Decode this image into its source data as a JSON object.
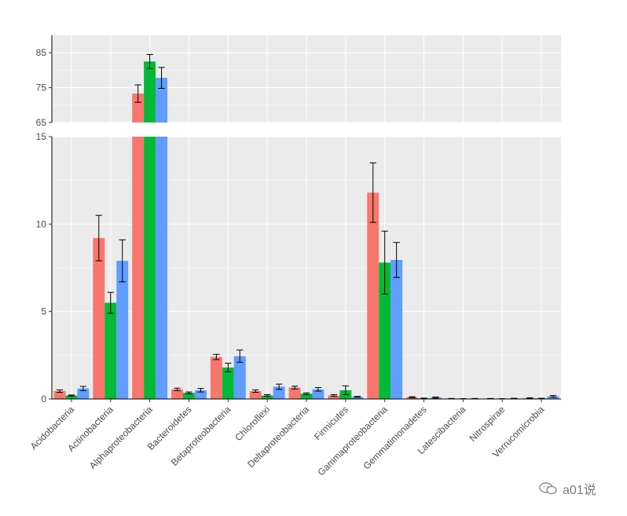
{
  "chart_data": {
    "type": "bar",
    "title": "",
    "xlabel": "",
    "ylabel": "",
    "broken_axis": true,
    "upper_panel": {
      "ylim": [
        65,
        90
      ],
      "ticks": [
        "65",
        "75",
        "85"
      ]
    },
    "lower_panel": {
      "ylim": [
        0,
        15
      ],
      "ticks": [
        "0",
        "5",
        "10",
        "15"
      ]
    },
    "grid": true,
    "legend": "none",
    "categories": [
      "Acidobacteria",
      "Actinobacteria",
      "Alphaproteobacteria",
      "Bacteroidetes",
      "Betaproteobacteria",
      "Chloroflexi",
      "Deltaproteobacteria",
      "Firmicutes",
      "Gammaproteobacteria",
      "Gemmatimonadetes",
      "Latescibacteria",
      "Nitrospirae",
      "Verrucomicrobia"
    ],
    "series": [
      {
        "color": "#F8766D",
        "values": [
          0.45,
          9.2,
          73.3,
          0.55,
          2.4,
          0.45,
          0.65,
          0.2,
          11.8,
          0.1,
          0.02,
          0.02,
          0.05
        ],
        "errors": [
          0.07,
          1.3,
          2.5,
          0.07,
          0.15,
          0.07,
          0.08,
          0.05,
          1.7,
          0.03,
          0.01,
          0.01,
          0.02
        ]
      },
      {
        "color": "#00BA38",
        "values": [
          0.2,
          5.5,
          82.5,
          0.35,
          1.8,
          0.2,
          0.3,
          0.5,
          7.8,
          0.03,
          0.01,
          0.01,
          0.03
        ],
        "errors": [
          0.03,
          0.6,
          2.0,
          0.05,
          0.25,
          0.05,
          0.05,
          0.25,
          1.8,
          0.02,
          0.01,
          0.01,
          0.01
        ]
      },
      {
        "color": "#619CFF",
        "values": [
          0.6,
          7.9,
          77.8,
          0.5,
          2.45,
          0.7,
          0.55,
          0.12,
          7.95,
          0.08,
          0.02,
          0.03,
          0.15
        ],
        "errors": [
          0.12,
          1.2,
          3.0,
          0.1,
          0.35,
          0.15,
          0.1,
          0.03,
          1.0,
          0.03,
          0.01,
          0.01,
          0.05
        ]
      }
    ]
  },
  "watermark": {
    "text": "a01说"
  }
}
